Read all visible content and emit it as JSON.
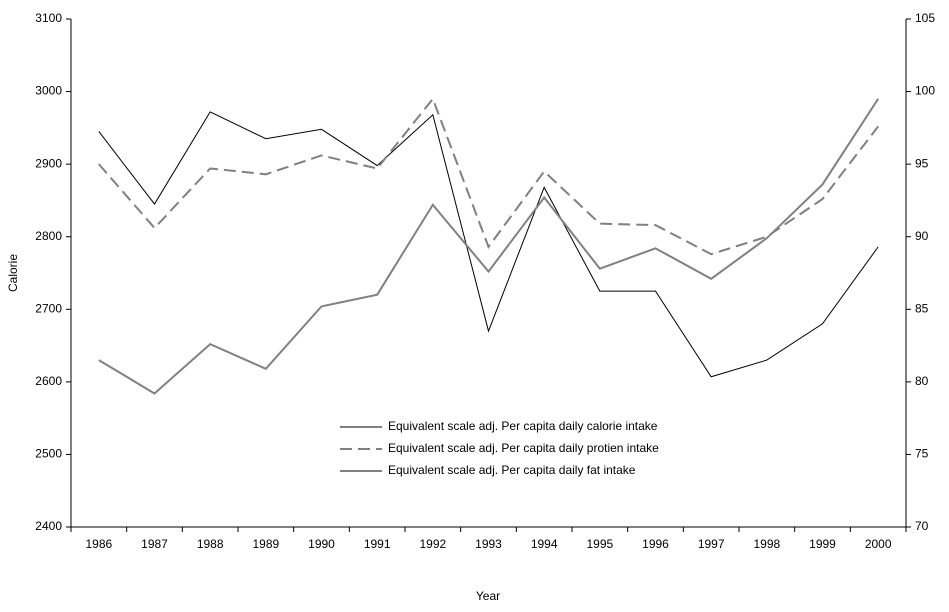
{
  "chart_data": {
    "type": "line",
    "x_label": "Year",
    "y_label": "Calorie",
    "categories": [
      "1986",
      "1987",
      "1988",
      "1989",
      "1990",
      "1991",
      "1992",
      "1993",
      "1994",
      "1995",
      "1996",
      "1997",
      "1998",
      "1999",
      "2000"
    ],
    "series": [
      {
        "name": "Equivalent scale adj. Per capita daily calorie intake",
        "color": "#000000",
        "dashed": false,
        "values": [
          2945,
          2845,
          2972,
          2935,
          2948,
          2898,
          2968,
          2670,
          2868,
          2725,
          2725,
          2607,
          2630,
          2680,
          2786
        ]
      },
      {
        "name": "Equivalent scale adj. Per capita daily protien intake",
        "color": "#808080",
        "dashed": true,
        "axis": "y2",
        "values": [
          95,
          90.6,
          94.7,
          94.3,
          95.6,
          94.7,
          99.5,
          89.3,
          94.5,
          90.9,
          90.8,
          88.8,
          90,
          92.6,
          97.6
        ]
      },
      {
        "name": "Equivalent scale adj. Per capita daily fat intake",
        "color": "#808080",
        "dashed": false,
        "axis": "y2",
        "values": [
          81.5,
          79.2,
          82.6,
          80.9,
          85.2,
          86,
          92.2,
          87.6,
          92.7,
          87.8,
          89.2,
          87.1,
          89.9,
          93.6,
          99.5
        ]
      }
    ],
    "ylim": [
      2400,
      3100
    ],
    "yticks": [
      2400,
      2500,
      2600,
      2700,
      2800,
      2900,
      3000,
      3100
    ],
    "y2lim": [
      70,
      105
    ],
    "y2ticks": [
      70,
      75,
      80,
      85,
      90,
      95,
      100,
      105
    ],
    "grid": false,
    "legend": "center"
  }
}
